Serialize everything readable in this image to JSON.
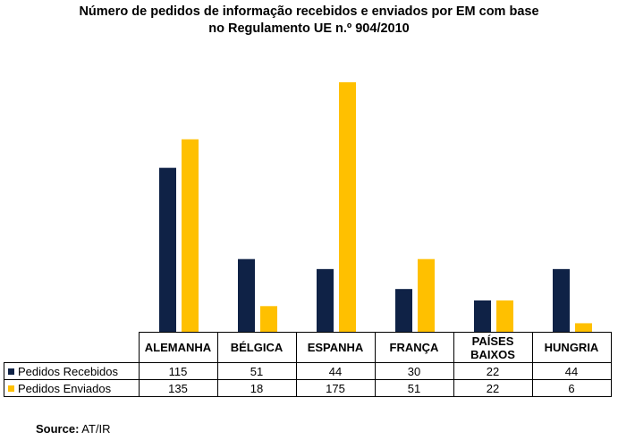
{
  "chart_data": {
    "type": "bar",
    "title_line1": "Número de pedidos de informação recebidos e enviados por EM com base",
    "title_line2": "no Regulamento UE n.º 904/2010",
    "categories": [
      "ALEMANHA",
      "BÉLGICA",
      "ESPANHA",
      "FRANÇA",
      "PAÍSES BAIXOS",
      "HUNGRIA"
    ],
    "category_lines": [
      [
        "ALEMANHA"
      ],
      [
        "BÉLGICA"
      ],
      [
        "ESPANHA"
      ],
      [
        "FRANÇA"
      ],
      [
        "PAÍSES",
        "BAIXOS"
      ],
      [
        "HUNGRIA"
      ]
    ],
    "series": [
      {
        "name": "Pedidos Recebidos",
        "color": "#0f2246",
        "values": [
          115,
          51,
          44,
          30,
          22,
          44
        ]
      },
      {
        "name": "Pedidos Enviados",
        "color": "#ffc000",
        "values": [
          135,
          18,
          175,
          51,
          22,
          6
        ]
      }
    ],
    "ylim": [
      0,
      175
    ],
    "grid": false,
    "legend": "data table rows below chart"
  },
  "source_label": "Source:",
  "source_value": " AT/IR"
}
